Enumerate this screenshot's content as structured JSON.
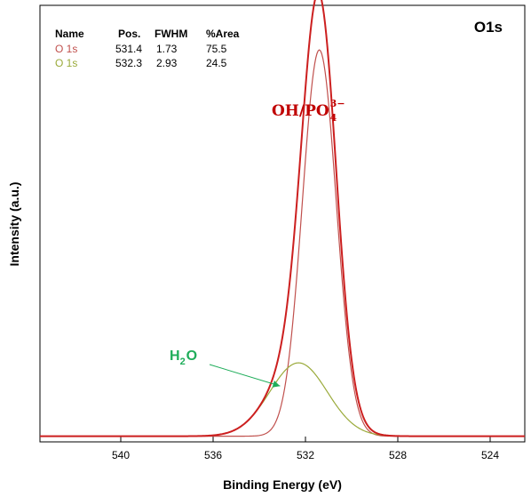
{
  "chart_data": {
    "type": "line",
    "panel_label": "O1s",
    "xlabel": "Binding Energy (eV)",
    "ylabel": "Intensity (a.u.)",
    "x_reversed": true,
    "xlim": [
      543.5,
      522.5
    ],
    "ylim": [
      0,
      1
    ],
    "x_ticks": [
      540,
      536,
      532,
      528,
      524
    ],
    "x_tick_labels": [
      "540",
      "536",
      "532",
      "528",
      "524"
    ],
    "grid": false,
    "background": 0.013,
    "colors": {
      "envelope": "#cc1f1f",
      "peak1": "#c0504d",
      "peak2": "#9aaa3a",
      "annot_main": "#c00000",
      "annot_water": "#1fad5a"
    },
    "fit_table": {
      "headers": [
        "Name",
        "Pos.",
        "FWHM",
        "%Area"
      ],
      "rows": [
        {
          "name": "O 1s",
          "pos": "531.4",
          "fwhm": "1.73",
          "area": "75.5"
        },
        {
          "name": "O 1s",
          "pos": "532.3",
          "fwhm": "2.93",
          "area": "24.5"
        }
      ]
    },
    "series": [
      {
        "role": "envelope",
        "component_indices": [
          0,
          1
        ]
      },
      {
        "role": "component",
        "center": 531.4,
        "fwhm": 1.73,
        "height": 0.885
      },
      {
        "role": "component",
        "center": 532.3,
        "fwhm": 2.93,
        "height": 0.168
      }
    ],
    "annotations": [
      {
        "text": "OH/PO",
        "subscript": "4",
        "superscript": "3−",
        "x": 531.4,
        "y": 1.02,
        "color": "annot_main"
      },
      {
        "text": "H",
        "subscript": "2",
        "suffix": "O",
        "arrow_to": [
          533.1,
          0.128
        ],
        "color": "annot_water"
      }
    ]
  }
}
